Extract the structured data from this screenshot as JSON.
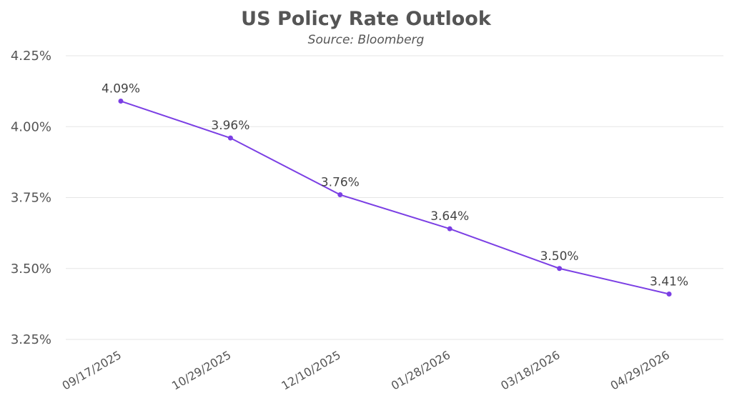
{
  "chart_data": {
    "type": "line",
    "title": "US Policy Rate Outlook",
    "subtitle": "Source: Bloomberg",
    "xlabel": "",
    "ylabel": "",
    "categories": [
      "09/17/2025",
      "10/29/2025",
      "12/10/2025",
      "01/28/2026",
      "03/18/2026",
      "04/29/2026"
    ],
    "series": [
      {
        "values": [
          4.09,
          3.96,
          3.76,
          3.64,
          3.5,
          3.41
        ],
        "labels": [
          "4.09%",
          "3.96%",
          "3.76%",
          "3.64%",
          "3.50%",
          "3.41%"
        ],
        "color": "#7b3fe4"
      }
    ],
    "ylim": [
      3.25,
      4.25
    ],
    "yticks": [
      3.25,
      3.5,
      3.75,
      4.0,
      4.25
    ],
    "ytick_labels": [
      "3.25%",
      "3.50%",
      "3.75%",
      "4.00%",
      "4.25%"
    ],
    "grid": true,
    "legend": "none"
  }
}
